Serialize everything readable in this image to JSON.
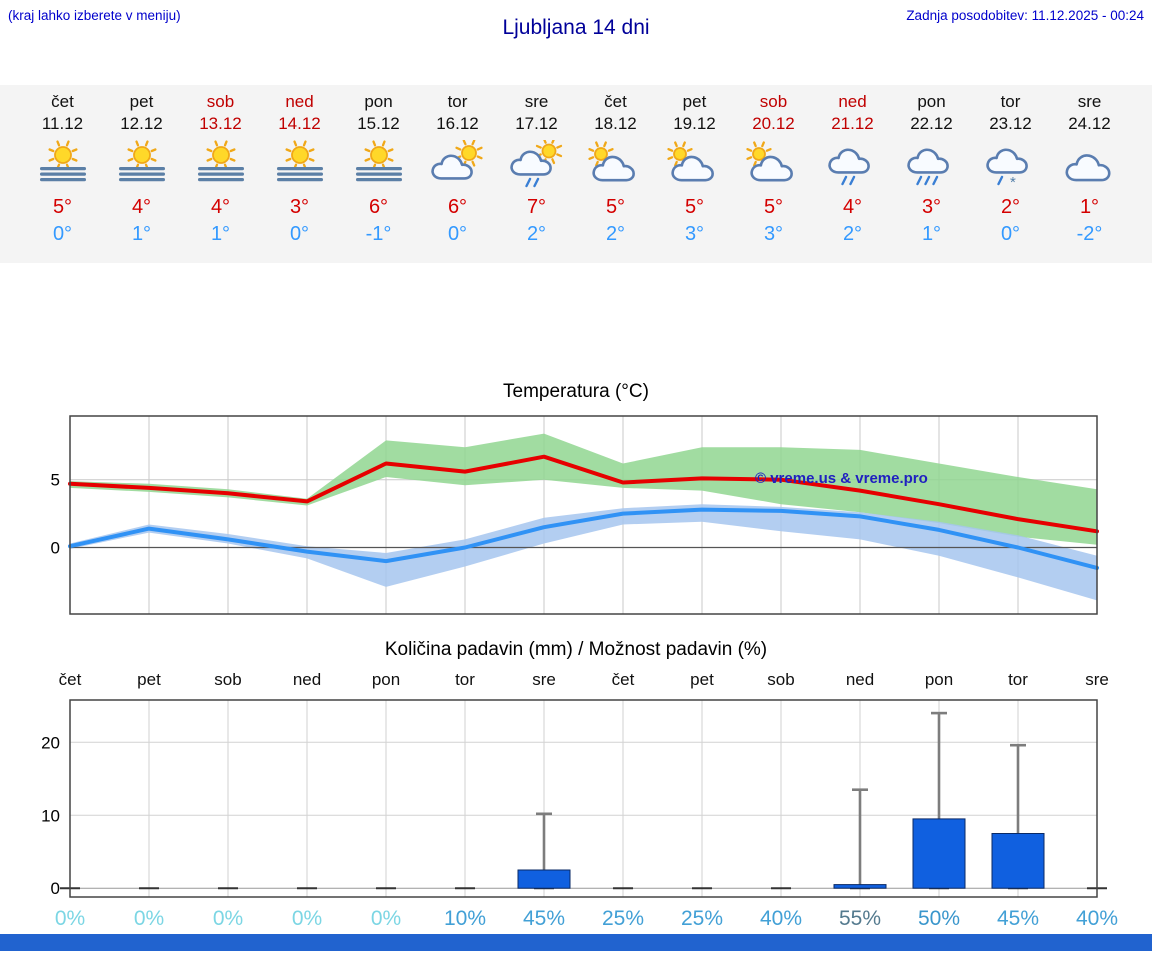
{
  "header": {
    "left_note": "(kraj lahko izberete v meniju)",
    "title": "Ljubljana 14 dni",
    "last_update": "Zadnja posodobitev: 11.12.2025 - 00:24"
  },
  "colors": {
    "header_blue": "#0000cc",
    "title_blue": "#000099",
    "weekend_red": "#c00000",
    "tmax_red": "#d40000",
    "tmin_blue": "#3399ff",
    "strip_bg": "#f4f4f4",
    "bottom_bar_blue": "#2163cf",
    "watermark_blue": "#2020c0"
  },
  "days": [
    {
      "name": "čet",
      "date": "11.12",
      "weekend": false,
      "icon": "sun-fog",
      "tmax": "5°",
      "tmin": "0°"
    },
    {
      "name": "pet",
      "date": "12.12",
      "weekend": false,
      "icon": "sun-fog",
      "tmax": "4°",
      "tmin": "1°"
    },
    {
      "name": "sob",
      "date": "13.12",
      "weekend": true,
      "icon": "sun-fog",
      "tmax": "4°",
      "tmin": "1°"
    },
    {
      "name": "ned",
      "date": "14.12",
      "weekend": true,
      "icon": "sun-fog",
      "tmax": "3°",
      "tmin": "0°"
    },
    {
      "name": "pon",
      "date": "15.12",
      "weekend": false,
      "icon": "sun-fog",
      "tmax": "6°",
      "tmin": "-1°"
    },
    {
      "name": "tor",
      "date": "16.12",
      "weekend": false,
      "icon": "sun-cloud",
      "tmax": "6°",
      "tmin": "0°"
    },
    {
      "name": "sre",
      "date": "17.12",
      "weekend": false,
      "icon": "sun-cloud-showers",
      "tmax": "7°",
      "tmin": "2°"
    },
    {
      "name": "čet",
      "date": "18.12",
      "weekend": false,
      "icon": "cloud-sun",
      "tmax": "5°",
      "tmin": "2°"
    },
    {
      "name": "pet",
      "date": "19.12",
      "weekend": false,
      "icon": "cloud-sun",
      "tmax": "5°",
      "tmin": "3°"
    },
    {
      "name": "sob",
      "date": "20.12",
      "weekend": true,
      "icon": "cloud-sun",
      "tmax": "5°",
      "tmin": "3°"
    },
    {
      "name": "ned",
      "date": "21.12",
      "weekend": true,
      "icon": "cloud-rain",
      "tmax": "4°",
      "tmin": "2°"
    },
    {
      "name": "pon",
      "date": "22.12",
      "weekend": false,
      "icon": "cloud-heavy-rain",
      "tmax": "3°",
      "tmin": "1°"
    },
    {
      "name": "tor",
      "date": "23.12",
      "weekend": false,
      "icon": "cloud-sleet",
      "tmax": "2°",
      "tmin": "0°"
    },
    {
      "name": "sre",
      "date": "24.12",
      "weekend": false,
      "icon": "cloud",
      "tmax": "1°",
      "tmin": "-2°"
    }
  ],
  "chart_data": [
    {
      "type": "line",
      "title": "Temperatura (°C)",
      "watermark": "© vreme.us & vreme.pro",
      "x_labels": [
        "čet",
        "pet",
        "sob",
        "ned",
        "pon",
        "tor",
        "sre",
        "čet",
        "pet",
        "sob",
        "ned",
        "pon",
        "tor",
        "sre"
      ],
      "ylim": [
        -4.9,
        9.7
      ],
      "yticks": [
        0,
        5
      ],
      "grid": true,
      "legend": "none",
      "series": [
        {
          "name": "max-temperature",
          "color": "#e60000",
          "values": [
            4.7,
            4.4,
            4.0,
            3.4,
            6.2,
            5.6,
            6.7,
            4.8,
            5.1,
            5.0,
            4.2,
            3.2,
            2.1,
            1.2
          ]
        },
        {
          "name": "min-temperature",
          "color": "#3092f5",
          "values": [
            0.1,
            1.4,
            0.6,
            -0.3,
            -1.0,
            0.0,
            1.5,
            2.5,
            2.8,
            2.7,
            2.3,
            1.3,
            0.0,
            -1.5
          ]
        }
      ],
      "bands": [
        {
          "name": "max-temperature-range",
          "color": "#90d690",
          "opacity": 0.85,
          "upper": [
            4.9,
            4.7,
            4.3,
            3.6,
            7.9,
            7.4,
            8.4,
            6.2,
            7.4,
            7.4,
            7.2,
            6.2,
            5.2,
            4.3
          ],
          "lower": [
            4.4,
            4.1,
            3.7,
            3.1,
            5.2,
            4.6,
            5.0,
            4.4,
            4.2,
            3.2,
            2.6,
            1.8,
            0.8,
            0.2
          ]
        },
        {
          "name": "min-temperature-range",
          "color": "#a6c6ee",
          "opacity": 0.85,
          "upper": [
            0.3,
            1.7,
            1.0,
            0.1,
            -0.4,
            0.6,
            2.2,
            2.9,
            3.2,
            3.0,
            2.6,
            1.9,
            0.9,
            -0.6
          ],
          "lower": [
            -0.1,
            1.1,
            0.3,
            -0.8,
            -2.9,
            -1.4,
            0.3,
            1.7,
            1.9,
            1.2,
            0.6,
            -0.6,
            -2.2,
            -3.9
          ]
        }
      ]
    },
    {
      "type": "bar",
      "title": "Količina padavin (mm) / Možnost padavin (%)",
      "categories": [
        "čet",
        "pet",
        "sob",
        "ned",
        "pon",
        "tor",
        "sre",
        "čet",
        "pet",
        "sob",
        "ned",
        "pon",
        "tor",
        "sre"
      ],
      "values": [
        0,
        0,
        0,
        0,
        0,
        0,
        2.5,
        0,
        0,
        0,
        0.5,
        9.5,
        7.5,
        0
      ],
      "whisker_max": [
        0,
        0,
        0,
        0,
        0,
        0,
        10.2,
        0,
        0,
        0,
        13.5,
        24,
        19.6,
        0
      ],
      "percent_labels": [
        "0%",
        "0%",
        "0%",
        "0%",
        "0%",
        "10%",
        "45%",
        "25%",
        "25%",
        "40%",
        "55%",
        "50%",
        "45%",
        "40%"
      ],
      "percent_colors": [
        "#7cd6e4",
        "#7cd6e4",
        "#7cd6e4",
        "#7cd6e4",
        "#7cd6e4",
        "#42a0d6",
        "#42a0d6",
        "#42a0d6",
        "#42a0d6",
        "#42a0d6",
        "#547a8e",
        "#3a96cc",
        "#42a0d6",
        "#42a0d6"
      ],
      "ylim": [
        -1.2,
        25.8
      ],
      "yticks": [
        0,
        10,
        20
      ],
      "bar_color": "#1060e0",
      "bar_stroke": "#0a2a66",
      "whisker_color": "#7d7d7d",
      "grid": true,
      "ylabel": ""
    }
  ]
}
